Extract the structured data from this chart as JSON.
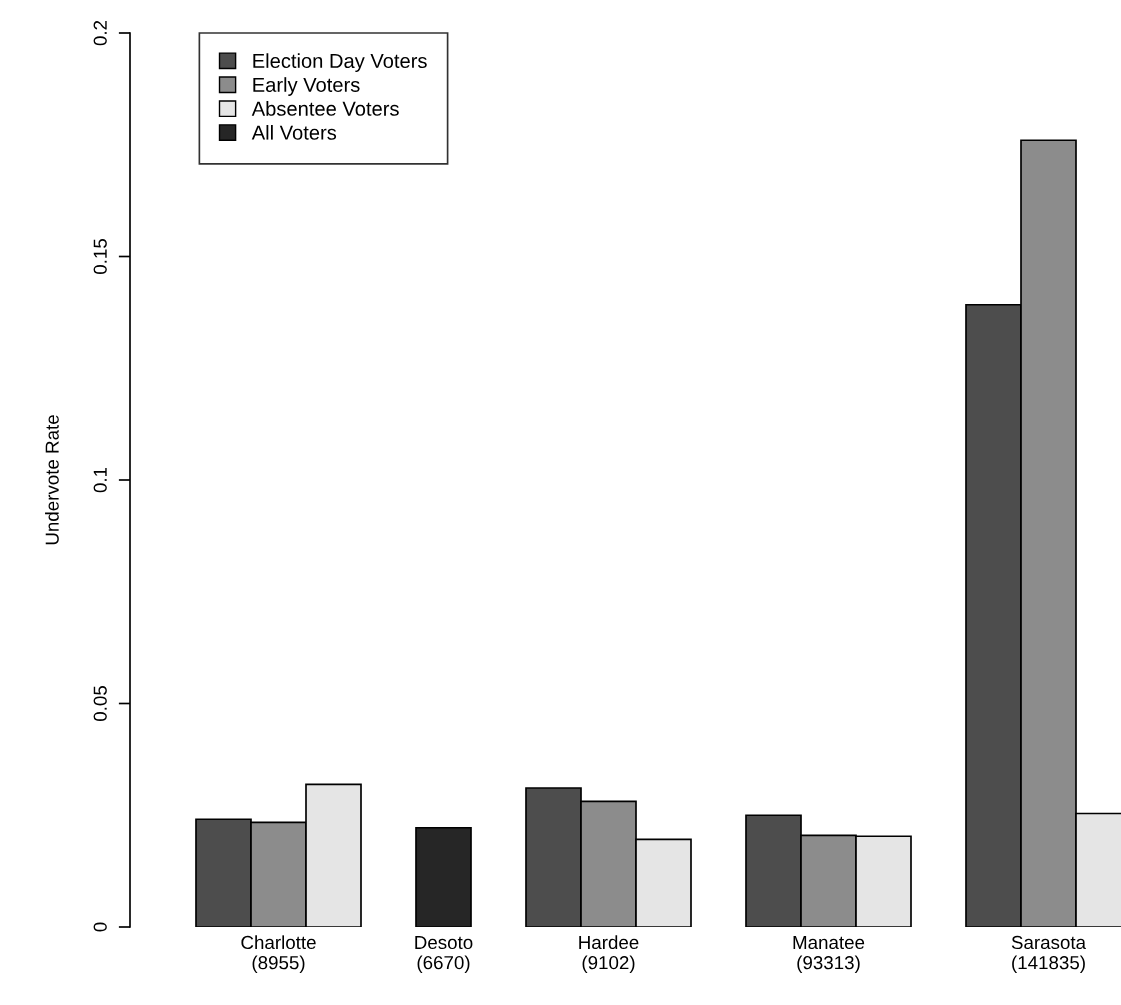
{
  "chart_data": {
    "type": "bar",
    "ylabel": "Undervote Rate",
    "categories": [
      "Charlotte\n(8955)",
      "Desoto\n(6670)",
      "Hardee\n(9102)",
      "Manatee\n(93313)",
      "Sarasota\n(141835)"
    ],
    "series": [
      {
        "name": "Election Day Voters",
        "color": "#4d4d4d",
        "values": [
          0.0241,
          null,
          0.0311,
          0.025,
          0.1392
        ]
      },
      {
        "name": "Early Voters",
        "color": "#8c8c8c",
        "values": [
          0.0234,
          null,
          0.0281,
          0.0205,
          0.176
        ]
      },
      {
        "name": "Absentee Voters",
        "color": "#e5e5e5",
        "values": [
          0.0319,
          null,
          0.0196,
          0.0203,
          0.0254
        ]
      },
      {
        "name": "All Voters",
        "color": "#262626",
        "values": [
          null,
          0.0222,
          null,
          null,
          null
        ]
      }
    ],
    "ylim": [
      0,
      0.2
    ],
    "yticks": [
      0,
      0.05,
      0.1,
      0.15,
      0.2
    ],
    "grid": false,
    "legend": "top left"
  }
}
